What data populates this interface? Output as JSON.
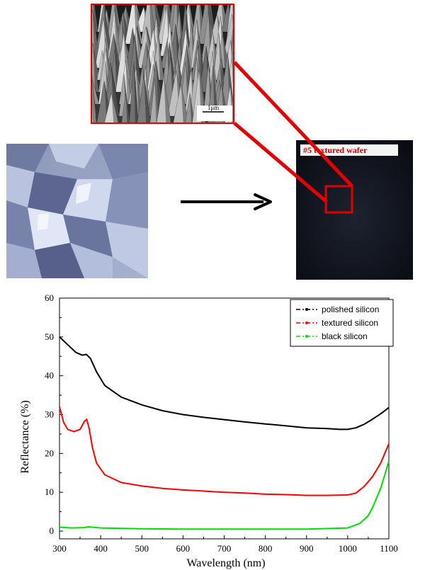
{
  "figure": {
    "sem_scale_label": "1μm",
    "wafer_label": "#5 textured wafer",
    "colors": {
      "highlight": "#e00000",
      "arrow": "#000000"
    }
  },
  "chart_data": {
    "type": "line",
    "xlabel": "Wavelength (nm)",
    "ylabel": "Reflectance (%)",
    "xlim": [
      300,
      1100
    ],
    "ylim": [
      -2,
      60
    ],
    "xticks": [
      300,
      400,
      500,
      600,
      700,
      800,
      900,
      1000,
      1100
    ],
    "yticks": [
      0,
      10,
      20,
      30,
      40,
      50,
      60
    ],
    "grid": false,
    "legend_position": "top-right",
    "series": [
      {
        "name": "polished silicon",
        "color": "#000000",
        "x": [
          300,
          320,
          340,
          355,
          365,
          375,
          390,
          410,
          450,
          500,
          550,
          600,
          650,
          700,
          750,
          800,
          850,
          900,
          950,
          980,
          1000,
          1020,
          1040,
          1060,
          1080,
          1100
        ],
        "y": [
          50,
          48,
          46,
          45.3,
          45.5,
          44.5,
          41,
          37.5,
          34.5,
          32.5,
          31,
          30,
          29.3,
          28.7,
          28.1,
          27.6,
          27.1,
          26.6,
          26.4,
          26.2,
          26.2,
          26.6,
          27.5,
          28.8,
          30.2,
          31.8
        ]
      },
      {
        "name": "textured silicon",
        "color": "#ff0000",
        "x": [
          300,
          310,
          320,
          335,
          350,
          360,
          366,
          372,
          380,
          390,
          410,
          450,
          500,
          550,
          600,
          650,
          700,
          750,
          800,
          850,
          900,
          950,
          1000,
          1020,
          1040,
          1060,
          1080,
          1100
        ],
        "y": [
          32,
          28,
          26.2,
          25.6,
          26.2,
          28.2,
          28.8,
          26.5,
          21.5,
          17.5,
          14.5,
          12.5,
          11.6,
          11,
          10.6,
          10.3,
          10,
          9.8,
          9.5,
          9.4,
          9.2,
          9.2,
          9.3,
          9.8,
          11.5,
          14,
          17.5,
          22.5
        ]
      },
      {
        "name": "black silicon",
        "color": "#00dd00",
        "x": [
          300,
          330,
          360,
          370,
          400,
          500,
          600,
          700,
          800,
          900,
          1000,
          1030,
          1050,
          1060,
          1070,
          1080,
          1090,
          1100
        ],
        "y": [
          1,
          0.8,
          0.9,
          1.1,
          0.8,
          0.6,
          0.5,
          0.5,
          0.5,
          0.5,
          0.8,
          2,
          4,
          6,
          8.5,
          11,
          14.5,
          18
        ]
      }
    ]
  }
}
